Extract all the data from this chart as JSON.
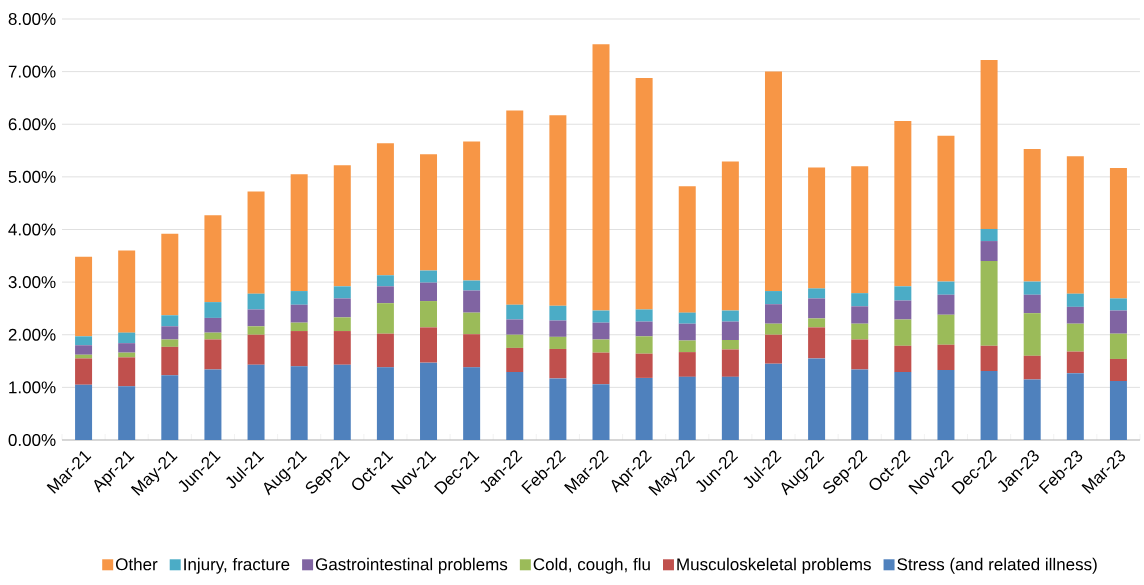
{
  "chart_data": {
    "type": "bar",
    "stacked": true,
    "categories": [
      "Mar-21",
      "Apr-21",
      "May-21",
      "Jun-21",
      "Jul-21",
      "Aug-21",
      "Sep-21",
      "Oct-21",
      "Nov-21",
      "Dec-21",
      "Jan-22",
      "Feb-22",
      "Mar-22",
      "Apr-22",
      "May-22",
      "Jun-22",
      "Jul-22",
      "Aug-22",
      "Sep-22",
      "Oct-22",
      "Nov-22",
      "Dec-22",
      "Jan-23",
      "Feb-23",
      "Mar-23"
    ],
    "series": [
      {
        "name": "Stress (and related illness)",
        "color": "#4f81bd",
        "values": [
          1.05,
          1.02,
          1.23,
          1.34,
          1.43,
          1.4,
          1.43,
          1.38,
          1.47,
          1.38,
          1.29,
          1.17,
          1.06,
          1.18,
          1.2,
          1.2,
          1.45,
          1.55,
          1.34,
          1.29,
          1.33,
          1.31,
          1.15,
          1.27,
          1.12
        ]
      },
      {
        "name": "Musculoskeletal problems",
        "color": "#c0504d",
        "values": [
          0.5,
          0.55,
          0.54,
          0.57,
          0.57,
          0.67,
          0.64,
          0.64,
          0.67,
          0.63,
          0.46,
          0.56,
          0.6,
          0.46,
          0.47,
          0.52,
          0.55,
          0.59,
          0.57,
          0.5,
          0.48,
          0.48,
          0.45,
          0.41,
          0.42
        ]
      },
      {
        "name": "Cold, cough, flu",
        "color": "#9bbb59",
        "values": [
          0.07,
          0.09,
          0.14,
          0.13,
          0.16,
          0.16,
          0.26,
          0.58,
          0.5,
          0.41,
          0.25,
          0.23,
          0.25,
          0.33,
          0.22,
          0.18,
          0.21,
          0.17,
          0.3,
          0.5,
          0.57,
          1.61,
          0.81,
          0.53,
          0.48
        ]
      },
      {
        "name": "Gastrointestinal problems",
        "color": "#8064a2",
        "values": [
          0.18,
          0.18,
          0.25,
          0.28,
          0.32,
          0.34,
          0.36,
          0.32,
          0.35,
          0.42,
          0.29,
          0.31,
          0.32,
          0.28,
          0.32,
          0.35,
          0.37,
          0.38,
          0.33,
          0.36,
          0.38,
          0.38,
          0.35,
          0.32,
          0.44
        ]
      },
      {
        "name": "Injury, fracture",
        "color": "#4bacc6",
        "values": [
          0.17,
          0.2,
          0.21,
          0.3,
          0.3,
          0.26,
          0.23,
          0.21,
          0.23,
          0.19,
          0.28,
          0.28,
          0.23,
          0.23,
          0.21,
          0.21,
          0.25,
          0.19,
          0.25,
          0.27,
          0.25,
          0.23,
          0.25,
          0.25,
          0.23
        ]
      },
      {
        "name": "Other",
        "color": "#f79646",
        "values": [
          1.51,
          1.56,
          1.55,
          1.65,
          1.94,
          2.22,
          2.3,
          2.51,
          2.21,
          2.64,
          3.69,
          3.62,
          5.06,
          4.4,
          2.4,
          2.83,
          4.17,
          2.3,
          2.41,
          3.14,
          2.77,
          3.21,
          2.52,
          2.61,
          2.48
        ]
      }
    ],
    "ylim": [
      0,
      8
    ],
    "yticks": [
      {
        "value": 0,
        "label": "0.00%"
      },
      {
        "value": 1,
        "label": "1.00%"
      },
      {
        "value": 2,
        "label": "2.00%"
      },
      {
        "value": 3,
        "label": "3.00%"
      },
      {
        "value": 4,
        "label": "4.00%"
      },
      {
        "value": 5,
        "label": "5.00%"
      },
      {
        "value": 6,
        "label": "6.00%"
      },
      {
        "value": 7,
        "label": "7.00%"
      },
      {
        "value": 8,
        "label": "8.00%"
      }
    ],
    "grid": "y",
    "legend": "bottom"
  }
}
